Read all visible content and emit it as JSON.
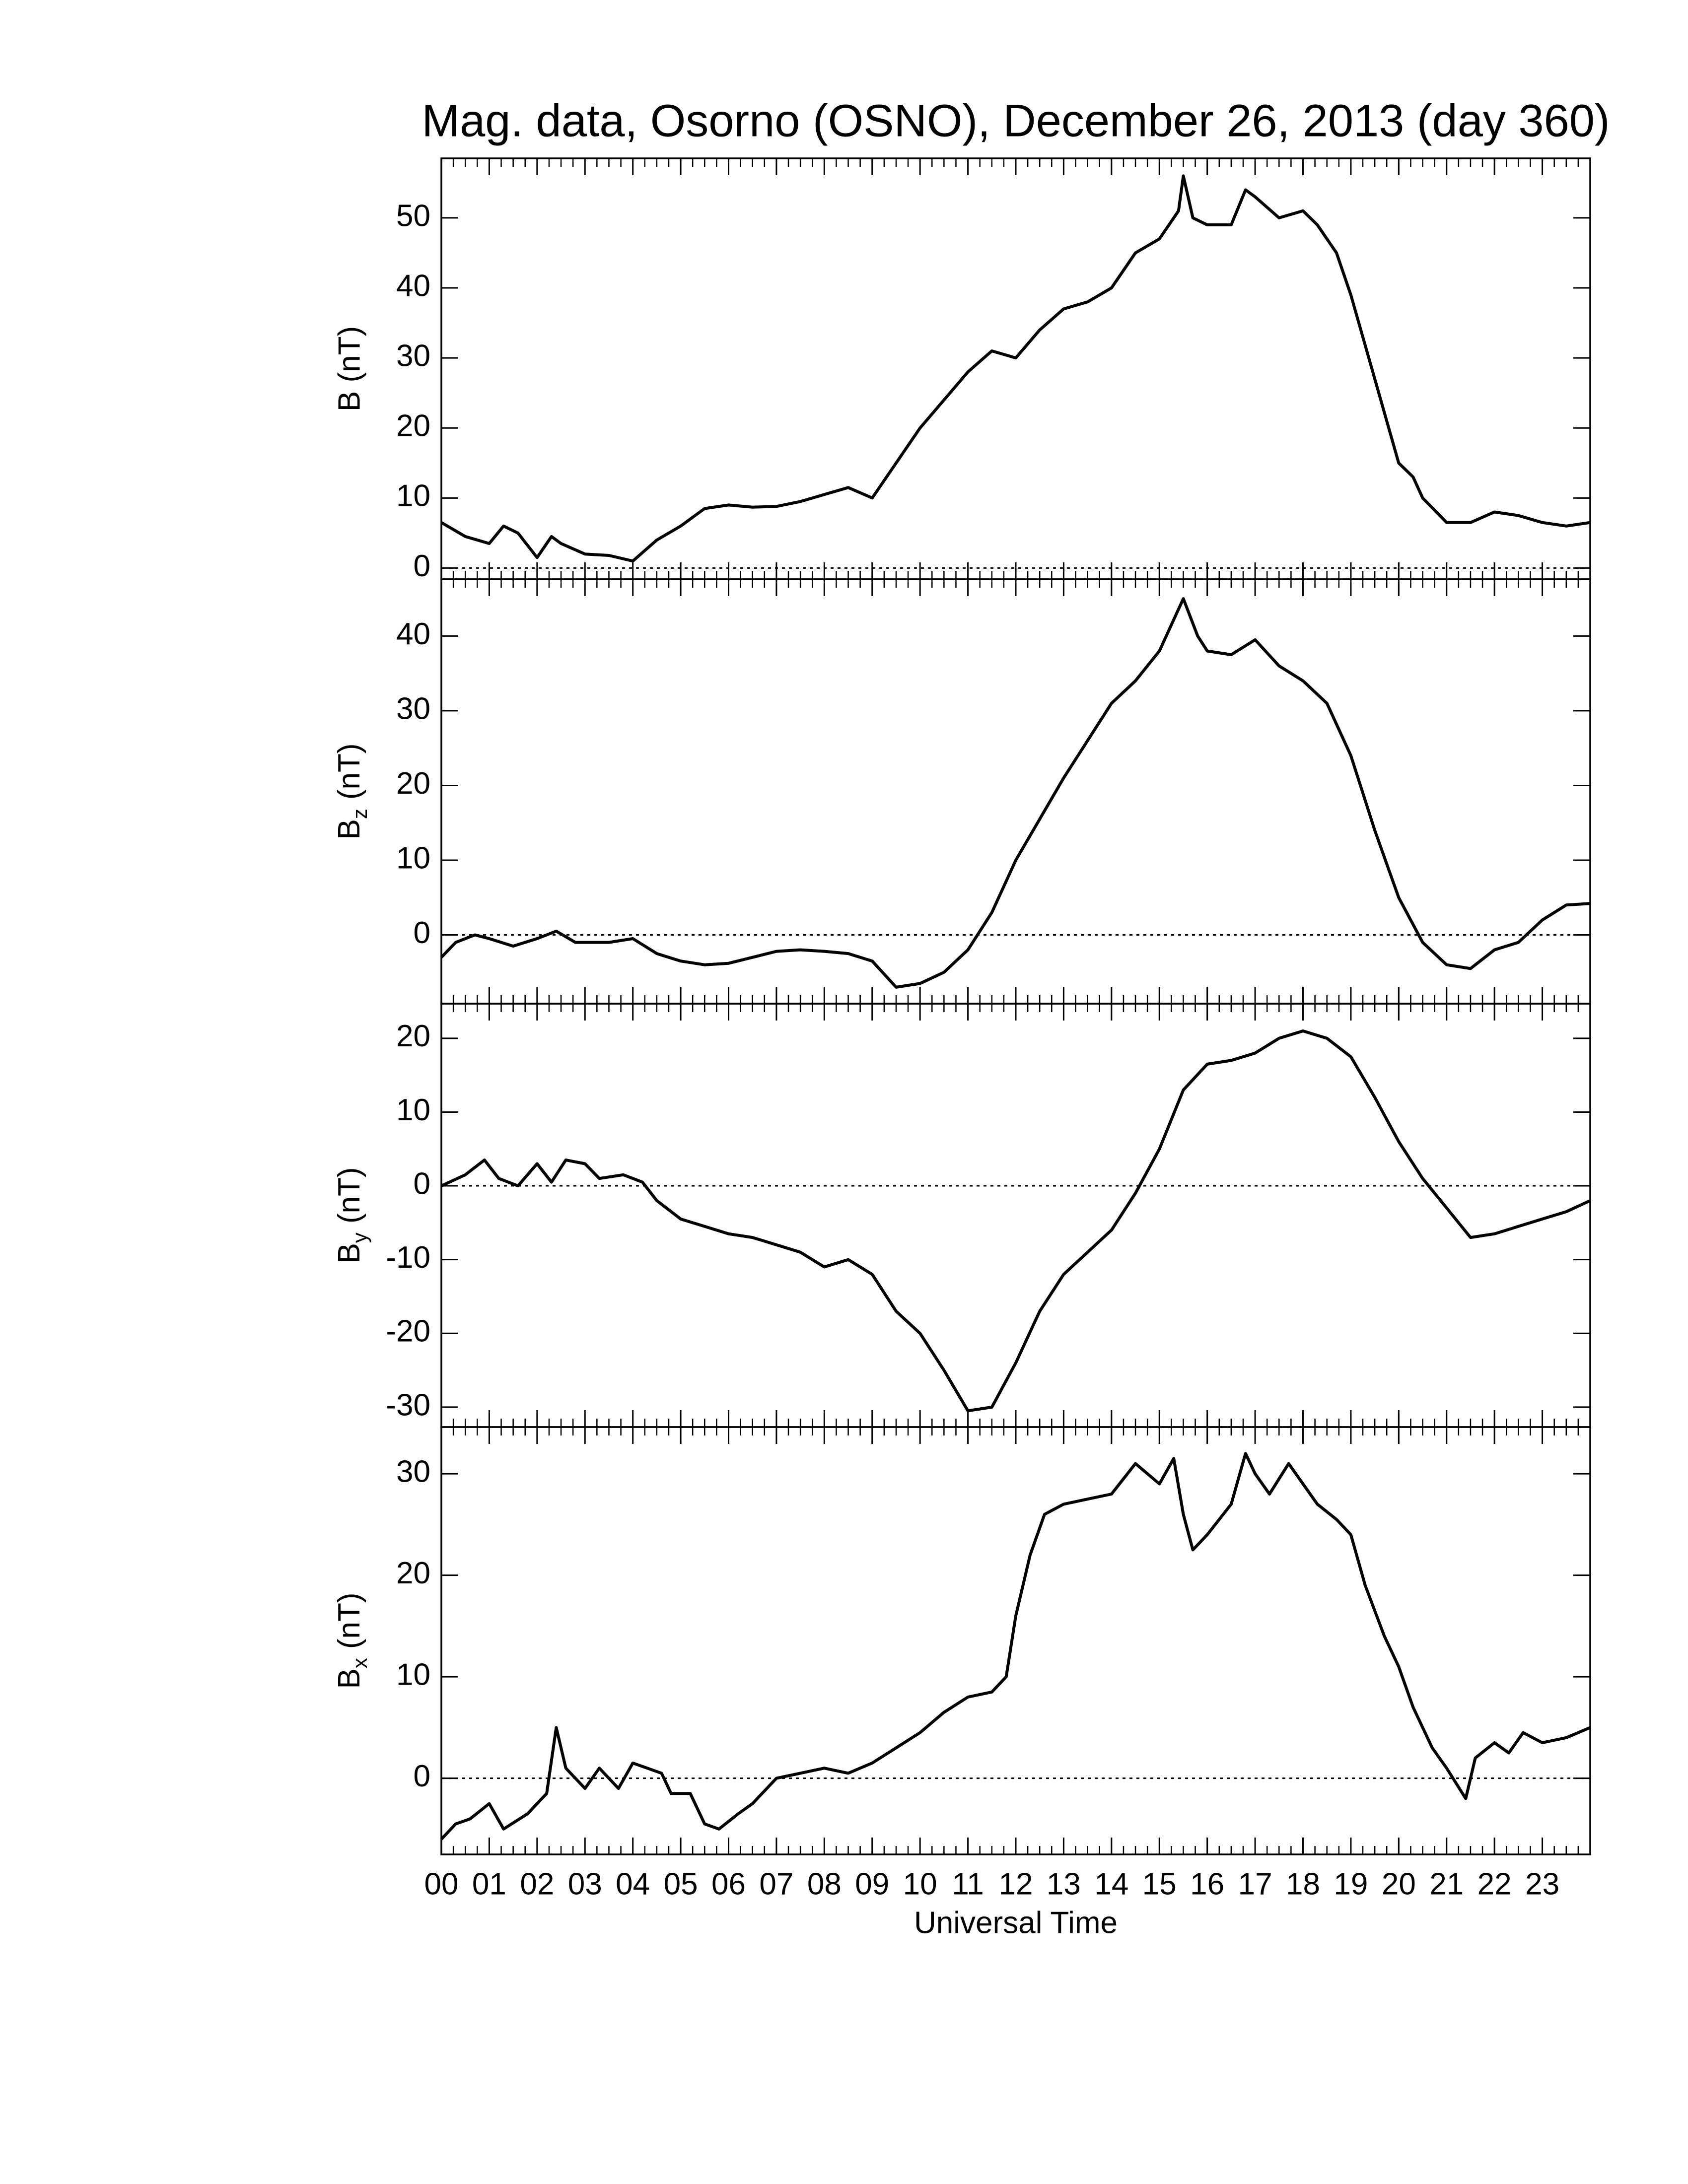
{
  "chart_data": [
    {
      "type": "line",
      "title": "Mag. data, Osorno (OSNO), December 26, 2013 (day 360)",
      "ylabel": "B (nT)",
      "xlim": [
        0,
        24
      ],
      "ylim": [
        -1.6,
        58.5
      ],
      "yticks": [
        0,
        10,
        20,
        30,
        40,
        50
      ],
      "zero_line": true,
      "color": "#000000",
      "x": [
        0,
        0.5,
        1.0,
        1.3,
        1.6,
        2.0,
        2.3,
        2.5,
        3.0,
        3.5,
        4.0,
        4.5,
        5.0,
        5.5,
        6.0,
        6.5,
        7.0,
        7.5,
        8.0,
        8.5,
        9.0,
        9.5,
        10.0,
        10.5,
        11.0,
        11.5,
        12.0,
        12.5,
        13.0,
        13.5,
        14.0,
        14.5,
        15.0,
        15.4,
        15.5,
        15.7,
        16.0,
        16.5,
        16.8,
        17.0,
        17.5,
        18.0,
        18.3,
        18.7,
        19.0,
        19.5,
        20.0,
        20.3,
        20.5,
        21.0,
        21.5,
        22.0,
        22.5,
        23.0,
        23.5,
        24
      ],
      "values": [
        6.5,
        4.5,
        3.5,
        6,
        5,
        1.5,
        4.5,
        3.5,
        2,
        1.8,
        1,
        4,
        6,
        8.5,
        9,
        8.7,
        8.8,
        9.5,
        10.5,
        11.5,
        10,
        15,
        20,
        24,
        28,
        31,
        30,
        34,
        37,
        38,
        40,
        45,
        47,
        51,
        56,
        50,
        49,
        49,
        54,
        53,
        50,
        51,
        49,
        45,
        39,
        27,
        15,
        13,
        10,
        6.5,
        6.5,
        8,
        7.5,
        6.5,
        6,
        6.5
      ]
    },
    {
      "type": "line",
      "ylabel": [
        "B",
        "z",
        "(nT)"
      ],
      "xlim": [
        0,
        24
      ],
      "ylim": [
        -9.2,
        47.6
      ],
      "yticks": [
        0,
        10,
        20,
        30,
        40
      ],
      "zero_line": true,
      "color": "#000000",
      "x": [
        0,
        0.3,
        0.7,
        1,
        1.5,
        2,
        2.4,
        2.8,
        3.5,
        4,
        4.5,
        5,
        5.5,
        6,
        6.5,
        7,
        7.5,
        8,
        8.5,
        9,
        9.5,
        10,
        10.5,
        11,
        11.5,
        12,
        12.5,
        13,
        13.5,
        14,
        14.5,
        15,
        15.5,
        15.8,
        16,
        16.5,
        17,
        17.5,
        18,
        18.5,
        19,
        19.5,
        20,
        20.5,
        21,
        21.5,
        22,
        22.5,
        23,
        23.5,
        24
      ],
      "values": [
        -3,
        -1,
        0,
        -0.5,
        -1.5,
        -0.5,
        0.5,
        -1,
        -1,
        -0.5,
        -2.5,
        -3.5,
        -4,
        -3.8,
        -3,
        -2.2,
        -2,
        -2.2,
        -2.5,
        -3.5,
        -7,
        -6.5,
        -5,
        -2,
        3,
        10,
        15.5,
        21,
        26,
        31,
        34,
        38,
        45,
        40,
        38,
        37.5,
        39.5,
        36,
        34,
        31,
        24,
        14,
        5,
        -1,
        -4,
        -4.5,
        -2,
        -1,
        2,
        4,
        4.2
      ]
    },
    {
      "type": "line",
      "ylabel": [
        "B",
        "y",
        "(nT)"
      ],
      "xlim": [
        0,
        24
      ],
      "ylim": [
        -32.7,
        24.7
      ],
      "yticks": [
        -30,
        -20,
        -10,
        0,
        10,
        20
      ],
      "zero_line": true,
      "color": "#000000",
      "x": [
        0,
        0.5,
        0.9,
        1.2,
        1.6,
        2,
        2.3,
        2.6,
        3,
        3.3,
        3.8,
        4.2,
        4.5,
        5,
        5.5,
        6,
        6.5,
        7,
        7.5,
        8,
        8.5,
        9,
        9.5,
        10,
        10.5,
        11,
        11.5,
        12,
        12.5,
        13,
        13.5,
        14,
        14.5,
        15,
        15.5,
        16,
        16.5,
        17,
        17.5,
        18,
        18.5,
        19,
        19.5,
        20,
        20.5,
        21,
        21.5,
        22,
        22.5,
        23,
        23.5,
        24
      ],
      "values": [
        0,
        1.5,
        3.5,
        1,
        0,
        3,
        0.5,
        3.5,
        3,
        1,
        1.5,
        0.5,
        -2,
        -4.5,
        -5.5,
        -6.5,
        -7,
        -8,
        -9,
        -11,
        -10,
        -12,
        -17,
        -20,
        -25,
        -30.5,
        -30,
        -24,
        -17,
        -12,
        -9,
        -6,
        -1,
        5,
        13,
        16.5,
        17,
        18,
        20,
        21,
        20,
        17.5,
        12,
        6,
        1,
        -3,
        -7,
        -6.5,
        -5.5,
        -4.5,
        -3.5,
        -2
      ]
    },
    {
      "type": "line",
      "ylabel": [
        "B",
        "x",
        "(nT)"
      ],
      "xlabel": "Universal Time",
      "xlim": [
        0,
        24
      ],
      "ylim": [
        -7.5,
        34.6
      ],
      "yticks": [
        0,
        10,
        20,
        30
      ],
      "zero_line": true,
      "color": "#000000",
      "xticks": [
        {
          "value": 0,
          "label": "00"
        },
        {
          "value": 1,
          "label": "01"
        },
        {
          "value": 2,
          "label": "02"
        },
        {
          "value": 3,
          "label": "03"
        },
        {
          "value": 4,
          "label": "04"
        },
        {
          "value": 5,
          "label": "05"
        },
        {
          "value": 6,
          "label": "06"
        },
        {
          "value": 7,
          "label": "07"
        },
        {
          "value": 8,
          "label": "08"
        },
        {
          "value": 9,
          "label": "09"
        },
        10,
        11,
        12,
        13,
        14,
        15,
        16,
        17,
        18,
        19,
        20,
        21,
        22,
        23
      ],
      "x": [
        0,
        0.3,
        0.6,
        1,
        1.3,
        1.8,
        2.2,
        2.4,
        2.6,
        3,
        3.3,
        3.7,
        4,
        4.3,
        4.6,
        4.8,
        5.2,
        5.5,
        5.8,
        6.2,
        6.5,
        7,
        7.5,
        8,
        8.5,
        9,
        9.5,
        10,
        10.5,
        11,
        11.5,
        11.8,
        12,
        12.3,
        12.6,
        13,
        13.5,
        14,
        14.5,
        15,
        15.3,
        15.5,
        15.7,
        16,
        16.5,
        16.8,
        17,
        17.3,
        17.7,
        18,
        18.3,
        18.7,
        19,
        19.3,
        19.7,
        20,
        20.3,
        20.7,
        21,
        21.4,
        21.6,
        22,
        22.3,
        22.6,
        23,
        23.5,
        24
      ],
      "values": [
        -6,
        -4.5,
        -4,
        -2.5,
        -5,
        -3.5,
        -1.5,
        5,
        1,
        -1,
        1,
        -1,
        1.5,
        1,
        0.5,
        -1.5,
        -1.5,
        -4.5,
        -5,
        -3.5,
        -2.5,
        0,
        0.5,
        1,
        0.5,
        1.5,
        3,
        4.5,
        6.5,
        8,
        8.5,
        10,
        16,
        22,
        26,
        27,
        27.5,
        28,
        31,
        29,
        31.5,
        26,
        22.5,
        24,
        27,
        32,
        30,
        28,
        31,
        29,
        27,
        25.5,
        24,
        19,
        14,
        11,
        7,
        3,
        1,
        -2,
        2,
        3.5,
        2.5,
        4.5,
        3.5,
        4,
        5
      ]
    }
  ]
}
